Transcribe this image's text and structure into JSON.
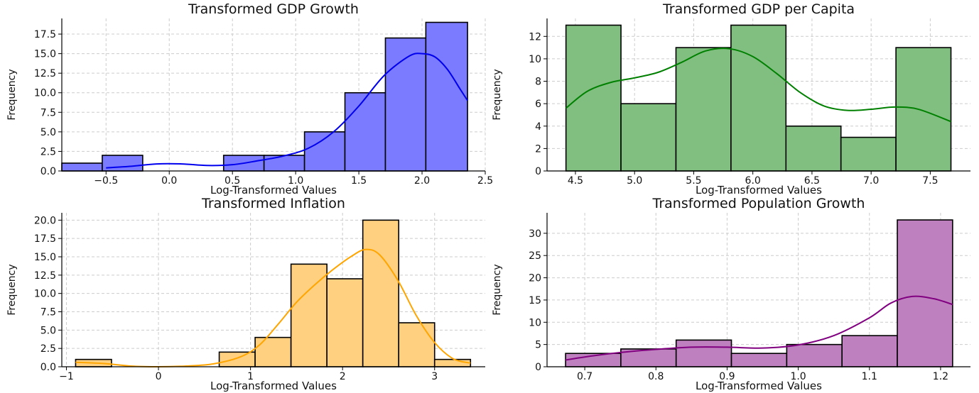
{
  "chart_data": [
    {
      "type": "histogram",
      "title": "Transformed GDP Growth",
      "xlabel": "Log-Transformed Values",
      "ylabel": "Frequency",
      "color": "#7b7bff",
      "kde_color": "#0000ee",
      "bin_edges": [
        -0.85,
        -0.53,
        -0.21,
        0.11,
        0.43,
        0.75,
        1.07,
        1.39,
        1.71,
        2.03,
        2.36
      ],
      "counts": [
        1,
        2,
        0,
        0,
        2,
        2,
        5,
        10,
        17,
        19
      ],
      "xlim": [
        -0.85,
        2.5
      ],
      "ylim": [
        0,
        19.5
      ],
      "xticks": [
        "−0.5",
        "0.0",
        "0.5",
        "1.0",
        "1.5",
        "2.0",
        "2.5"
      ],
      "xtick_values": [
        -0.5,
        0.0,
        0.5,
        1.0,
        1.5,
        2.0,
        2.5
      ],
      "yticks": [
        "0.0",
        "2.5",
        "5.0",
        "7.5",
        "10.0",
        "12.5",
        "15.0",
        "17.5"
      ],
      "ytick_values": [
        0,
        2.5,
        5,
        7.5,
        10,
        12.5,
        15,
        17.5
      ],
      "kde": {
        "x": [
          -0.5,
          -0.3,
          -0.1,
          0.1,
          0.3,
          0.5,
          0.7,
          0.9,
          1.1,
          1.3,
          1.5,
          1.7,
          1.9,
          2.0,
          2.1,
          2.2,
          2.3,
          2.36
        ],
        "y": [
          0.4,
          0.6,
          0.9,
          0.9,
          0.7,
          0.8,
          1.3,
          1.9,
          2.9,
          5.0,
          8.3,
          12.2,
          14.7,
          15.0,
          14.6,
          13.0,
          10.5,
          9.0
        ]
      },
      "grid": true
    },
    {
      "type": "histogram",
      "title": "Transformed GDP per Capita",
      "xlabel": "Log-Transformed Values",
      "ylabel": "Frequency",
      "color": "#80bf80",
      "kde_color": "#008000",
      "bin_edges": [
        4.42,
        4.885,
        5.35,
        5.815,
        6.28,
        6.745,
        7.21,
        7.675
      ],
      "counts": [
        13,
        6,
        11,
        13,
        4,
        3,
        11
      ],
      "xlim": [
        4.26,
        7.84
      ],
      "ylim": [
        0,
        13.6
      ],
      "xticks": [
        "4.5",
        "5.0",
        "5.5",
        "6.0",
        "6.5",
        "7.0",
        "7.5"
      ],
      "xtick_values": [
        4.5,
        5.0,
        5.5,
        6.0,
        6.5,
        7.0,
        7.5
      ],
      "yticks": [
        "0",
        "2",
        "4",
        "6",
        "8",
        "10",
        "12"
      ],
      "ytick_values": [
        0,
        2,
        4,
        6,
        8,
        10,
        12
      ],
      "kde": {
        "x": [
          4.42,
          4.6,
          4.8,
          5.0,
          5.2,
          5.4,
          5.6,
          5.8,
          6.0,
          6.2,
          6.4,
          6.6,
          6.8,
          7.0,
          7.2,
          7.4,
          7.675
        ],
        "y": [
          5.6,
          7.1,
          7.9,
          8.3,
          8.8,
          9.7,
          10.7,
          10.9,
          10.2,
          8.7,
          7.0,
          5.8,
          5.4,
          5.5,
          5.7,
          5.5,
          4.4
        ]
      },
      "grid": true
    },
    {
      "type": "histogram",
      "title": "Transformed Inflation",
      "xlabel": "Log-Transformed Values",
      "ylabel": "Frequency",
      "color": "#ffd080",
      "kde_color": "#ffa500",
      "bin_edges": [
        -0.9,
        -0.51,
        -0.12,
        0.27,
        0.66,
        1.05,
        1.44,
        1.83,
        2.22,
        2.61,
        3.0,
        3.39
      ],
      "counts": [
        1,
        0,
        0,
        0,
        2,
        4,
        14,
        12,
        20,
        6,
        1
      ],
      "xlim": [
        -1.05,
        3.55
      ],
      "ylim": [
        0,
        21
      ],
      "xticks": [
        "−1",
        "0",
        "1",
        "2",
        "3"
      ],
      "xtick_values": [
        -1,
        0,
        1,
        2,
        3
      ],
      "yticks": [
        "0.0",
        "2.5",
        "5.0",
        "7.5",
        "10.0",
        "12.5",
        "15.0",
        "17.5",
        "20.0"
      ],
      "ytick_values": [
        0,
        2.5,
        5,
        7.5,
        10,
        12.5,
        15,
        17.5,
        20
      ],
      "kde": {
        "x": [
          -0.9,
          -0.6,
          -0.3,
          0.0,
          0.3,
          0.6,
          0.9,
          1.1,
          1.3,
          1.5,
          1.7,
          1.9,
          2.1,
          2.25,
          2.4,
          2.6,
          2.8,
          3.0,
          3.2,
          3.39
        ],
        "y": [
          0.6,
          0.45,
          0.1,
          0.0,
          0.1,
          0.4,
          1.4,
          3.0,
          5.8,
          8.8,
          11.2,
          13.3,
          15.1,
          16.0,
          15.3,
          11.8,
          7.0,
          3.3,
          1.1,
          0.5
        ]
      },
      "grid": true
    },
    {
      "type": "histogram",
      "title": "Transformed Population Growth",
      "xlabel": "Log-Transformed Values",
      "ylabel": "Frequency",
      "color": "#bf80bf",
      "kde_color": "#800080",
      "bin_edges": [
        0.673,
        0.7507,
        0.8284,
        0.9061,
        0.9838,
        1.0615,
        1.1392,
        1.2169
      ],
      "counts": [
        3,
        4,
        6,
        3,
        5,
        7,
        33
      ],
      "xlim": [
        0.647,
        1.242
      ],
      "ylim": [
        0,
        34.6
      ],
      "xticks": [
        "0.7",
        "0.8",
        "0.9",
        "1.0",
        "1.1",
        "1.2"
      ],
      "xtick_values": [
        0.7,
        0.8,
        0.9,
        1.0,
        1.1,
        1.2
      ],
      "yticks": [
        "0",
        "5",
        "10",
        "15",
        "20",
        "25",
        "30"
      ],
      "ytick_values": [
        0,
        5,
        10,
        15,
        20,
        25,
        30
      ],
      "kde": {
        "x": [
          0.673,
          0.7,
          0.75,
          0.8,
          0.85,
          0.9,
          0.95,
          1.0,
          1.05,
          1.1,
          1.13,
          1.16,
          1.19,
          1.2169
        ],
        "y": [
          1.5,
          2.2,
          3.2,
          3.9,
          4.4,
          4.4,
          4.2,
          4.9,
          7.0,
          11.0,
          14.3,
          15.8,
          15.3,
          14.0
        ]
      },
      "grid": true
    }
  ]
}
